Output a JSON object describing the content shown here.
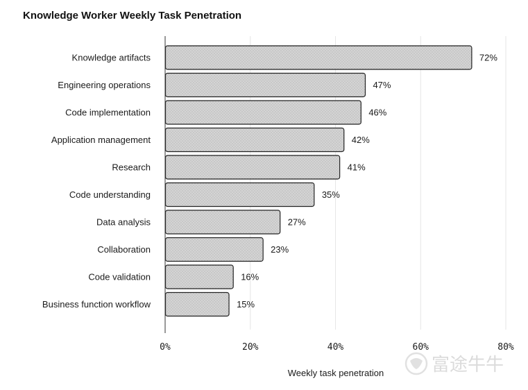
{
  "chart_data": {
    "type": "bar",
    "orientation": "horizontal",
    "title": "Knowledge Worker Weekly Task Penetration",
    "xlabel": "Weekly task penetration",
    "ylabel": "",
    "xlim": [
      0,
      80
    ],
    "x_ticks": [
      0,
      20,
      40,
      60,
      80
    ],
    "x_tick_labels": [
      "0%",
      "20%",
      "40%",
      "60%",
      "80%"
    ],
    "grid": "vertical",
    "categories": [
      "Knowledge artifacts",
      "Engineering operations",
      "Code implementation",
      "Application management",
      "Research",
      "Code understanding",
      "Data analysis",
      "Collaboration",
      "Code validation",
      "Business function workflow"
    ],
    "values": [
      72,
      47,
      46,
      42,
      41,
      35,
      27,
      23,
      16,
      15
    ],
    "value_labels": [
      "72%",
      "47%",
      "46%",
      "42%",
      "41%",
      "35%",
      "27%",
      "23%",
      "16%",
      "15%"
    ],
    "bar_fill": "#d4d4d4",
    "bar_edge": "#222222"
  },
  "watermark": {
    "text": "富途牛牛",
    "icon": "futu-bull-logo-icon"
  }
}
